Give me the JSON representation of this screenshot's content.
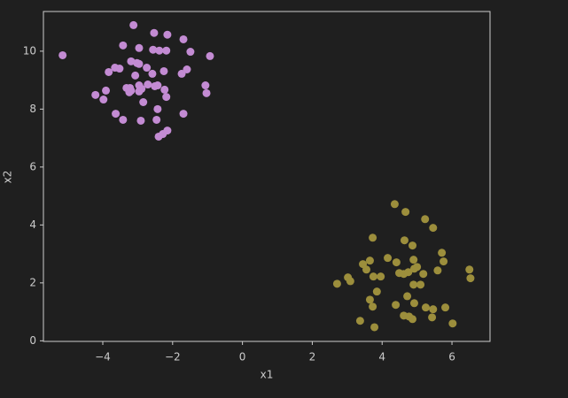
{
  "chart_data": {
    "type": "scatter",
    "xlabel": "x1",
    "ylabel": "x2",
    "xlim": [
      -5.7,
      7.09
    ],
    "ylim": [
      -0.02,
      11.37
    ],
    "xticks": [
      {
        "value": -4,
        "label": "−4"
      },
      {
        "value": -2,
        "label": "−2"
      },
      0,
      2,
      4,
      6
    ],
    "yticks": [
      0,
      2,
      4,
      6,
      8,
      10
    ],
    "series": [
      {
        "color": "#c38bd3",
        "x": [
          -5.15,
          -3.12,
          -2.53,
          -2.15,
          -1.69,
          -3.42,
          -2.96,
          -2.56,
          -2.38,
          -2.18,
          -1.49,
          -0.93,
          -3.19,
          -3.02,
          -2.96,
          -2.74,
          -1.59,
          -3.65,
          -3.52,
          -3.83,
          -1.74,
          -2.25,
          -3.07,
          -2.58,
          -4.21,
          -3.91,
          -3.98,
          -3.32,
          -3.19,
          -2.96,
          -2.89,
          -2.71,
          -2.51,
          -2.43,
          -2.23,
          -2.18,
          -2.96,
          -3.24,
          -1.06,
          -1.03,
          -2.84,
          -2.43,
          -3.63,
          -3.42,
          -2.91,
          -2.46,
          -1.69,
          -2.15,
          -2.28,
          -2.4,
          -3.22
        ],
        "values": [
          9.86,
          10.9,
          10.63,
          10.57,
          10.41,
          10.2,
          10.11,
          10.05,
          10.02,
          10.02,
          9.98,
          9.83,
          9.65,
          9.59,
          9.56,
          9.43,
          9.37,
          9.43,
          9.4,
          9.28,
          9.22,
          9.31,
          9.16,
          9.22,
          8.49,
          8.64,
          8.33,
          8.73,
          8.64,
          8.82,
          8.7,
          8.85,
          8.79,
          8.82,
          8.67,
          8.42,
          8.61,
          8.58,
          8.82,
          8.55,
          8.24,
          8.0,
          7.84,
          7.63,
          7.6,
          7.63,
          7.84,
          7.26,
          7.14,
          7.05,
          8.73
        ]
      },
      {
        "color": "#9c8e3c",
        "x": [
          4.36,
          4.67,
          5.23,
          5.46,
          3.73,
          4.64,
          4.87,
          5.71,
          5.76,
          4.16,
          4.41,
          4.9,
          5.0,
          3.45,
          3.65,
          3.55,
          3.96,
          3.75,
          4.49,
          4.62,
          4.75,
          4.92,
          5.59,
          5.18,
          6.5,
          6.53,
          2.71,
          3.02,
          3.09,
          4.9,
          5.1,
          3.85,
          3.65,
          3.73,
          4.72,
          4.39,
          4.92,
          5.25,
          5.46,
          5.81,
          4.62,
          4.77,
          4.87,
          5.43,
          3.37,
          3.78,
          6.02
        ],
        "values": [
          4.72,
          4.45,
          4.2,
          3.9,
          3.56,
          3.47,
          3.29,
          3.04,
          2.74,
          2.86,
          2.71,
          2.8,
          2.55,
          2.65,
          2.77,
          2.46,
          2.22,
          2.22,
          2.34,
          2.31,
          2.37,
          2.49,
          2.43,
          2.31,
          2.46,
          2.16,
          1.97,
          2.19,
          2.06,
          1.94,
          1.94,
          1.7,
          1.42,
          1.18,
          1.54,
          1.24,
          1.3,
          1.15,
          1.09,
          1.15,
          0.87,
          0.84,
          0.75,
          0.81,
          0.69,
          0.47,
          0.6
        ]
      }
    ]
  }
}
